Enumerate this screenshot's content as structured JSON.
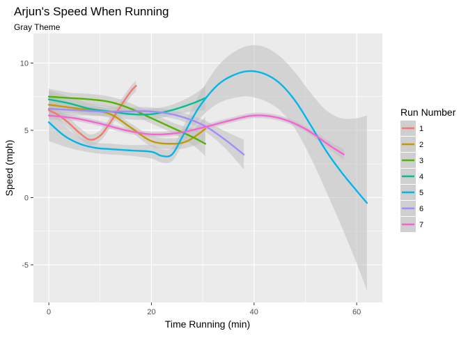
{
  "chart_data": {
    "type": "line",
    "title": "Arjun's Speed When Running",
    "subtitle": "Gray Theme",
    "xlabel": "Time Running (min)",
    "ylabel": "Speed (mph)",
    "xlim": [
      -3,
      65
    ],
    "ylim": [
      -7.8,
      12.2
    ],
    "x_ticks": [
      0,
      20,
      40,
      60
    ],
    "y_ticks": [
      -5,
      0,
      5,
      10
    ],
    "x_minor": [
      10,
      30,
      50
    ],
    "y_minor": [
      -2.5,
      2.5,
      7.5
    ],
    "grid": true,
    "legend": {
      "title": "Run Number",
      "placement": "right",
      "entries": [
        "1",
        "2",
        "3",
        "4",
        "5",
        "6",
        "7"
      ]
    },
    "colors": {
      "panel_bg": "#ebebeb",
      "grid": "#ffffff",
      "band": "#c0c0c0",
      "text": "#000000",
      "tick_text": "#4d4d4d"
    },
    "series": [
      {
        "name": "1",
        "color": "#f8766d",
        "x": [
          0,
          2,
          4,
          6,
          8,
          10,
          12,
          14,
          16,
          17
        ],
        "y": [
          6.5,
          6.1,
          5.5,
          4.8,
          4.3,
          4.6,
          5.6,
          6.8,
          7.9,
          8.3
        ],
        "band_half": [
          0.4,
          0.4,
          0.4,
          0.4,
          0.4,
          0.4,
          0.4,
          0.4,
          0.4,
          0.4
        ]
      },
      {
        "name": "2",
        "color": "#c49a00",
        "x": [
          0,
          4,
          8,
          12,
          16,
          20,
          24,
          27,
          30.5
        ],
        "y": [
          6.9,
          6.7,
          6.5,
          6.2,
          5.2,
          4.2,
          4.0,
          4.2,
          5.1
        ],
        "band_half": [
          1.0,
          0.4,
          0.4,
          0.3,
          0.3,
          0.4,
          0.4,
          0.5,
          0.9
        ]
      },
      {
        "name": "3",
        "color": "#53b400",
        "x": [
          0,
          4,
          8,
          12,
          16,
          20,
          24,
          28,
          30.5
        ],
        "y": [
          7.5,
          7.4,
          7.3,
          7.1,
          6.6,
          5.9,
          5.2,
          4.5,
          4.0
        ],
        "band_half": [
          0.6,
          0.4,
          0.4,
          0.4,
          0.4,
          0.4,
          0.4,
          0.6,
          0.9
        ]
      },
      {
        "name": "4",
        "color": "#00c094",
        "x": [
          0,
          4,
          8,
          12,
          16,
          20,
          24,
          28,
          30.5
        ],
        "y": [
          7.3,
          7.0,
          6.6,
          6.4,
          6.2,
          6.2,
          6.5,
          7.0,
          7.4
        ],
        "band_half": [
          0.7,
          0.5,
          0.4,
          0.4,
          0.4,
          0.4,
          0.4,
          0.6,
          0.9
        ]
      },
      {
        "name": "5",
        "color": "#00b6eb",
        "x": [
          0,
          3,
          6,
          9,
          12,
          16,
          20,
          22,
          24,
          26,
          28,
          30,
          33,
          36,
          39,
          42,
          45,
          48,
          51,
          54,
          57,
          60,
          62
        ],
        "y": [
          5.6,
          4.6,
          4.0,
          3.7,
          3.6,
          3.5,
          3.4,
          3.1,
          3.2,
          4.5,
          5.9,
          7.1,
          8.4,
          9.1,
          9.4,
          9.2,
          8.5,
          7.2,
          5.4,
          3.5,
          1.9,
          0.5,
          -0.4
        ],
        "band_half": [
          1.4,
          0.8,
          0.5,
          0.4,
          0.4,
          0.4,
          0.5,
          0.5,
          0.5,
          0.6,
          0.8,
          1.0,
          1.4,
          1.7,
          1.9,
          2.0,
          2.0,
          2.1,
          2.4,
          3.0,
          4.0,
          5.4,
          6.5
        ]
      },
      {
        "name": "6",
        "color": "#a58aff",
        "x": [
          0,
          5,
          10,
          15,
          20,
          25,
          30,
          34,
          38
        ],
        "y": [
          6.6,
          6.5,
          6.4,
          6.4,
          6.4,
          6.1,
          5.4,
          4.4,
          3.2
        ],
        "band_half": [
          0.6,
          0.4,
          0.3,
          0.3,
          0.3,
          0.3,
          0.4,
          0.6,
          1.1
        ]
      },
      {
        "name": "7",
        "color": "#fb61d7",
        "x": [
          0,
          5,
          10,
          15,
          20,
          25,
          30,
          35,
          40,
          45,
          50,
          55,
          57.5
        ],
        "y": [
          6.1,
          5.9,
          5.5,
          5.0,
          4.7,
          4.8,
          5.2,
          5.7,
          6.1,
          5.9,
          5.1,
          3.8,
          3.2
        ],
        "band_half": [
          0.3,
          0.2,
          0.2,
          0.2,
          0.2,
          0.2,
          0.2,
          0.2,
          0.2,
          0.2,
          0.2,
          0.3,
          0.4
        ]
      }
    ]
  }
}
